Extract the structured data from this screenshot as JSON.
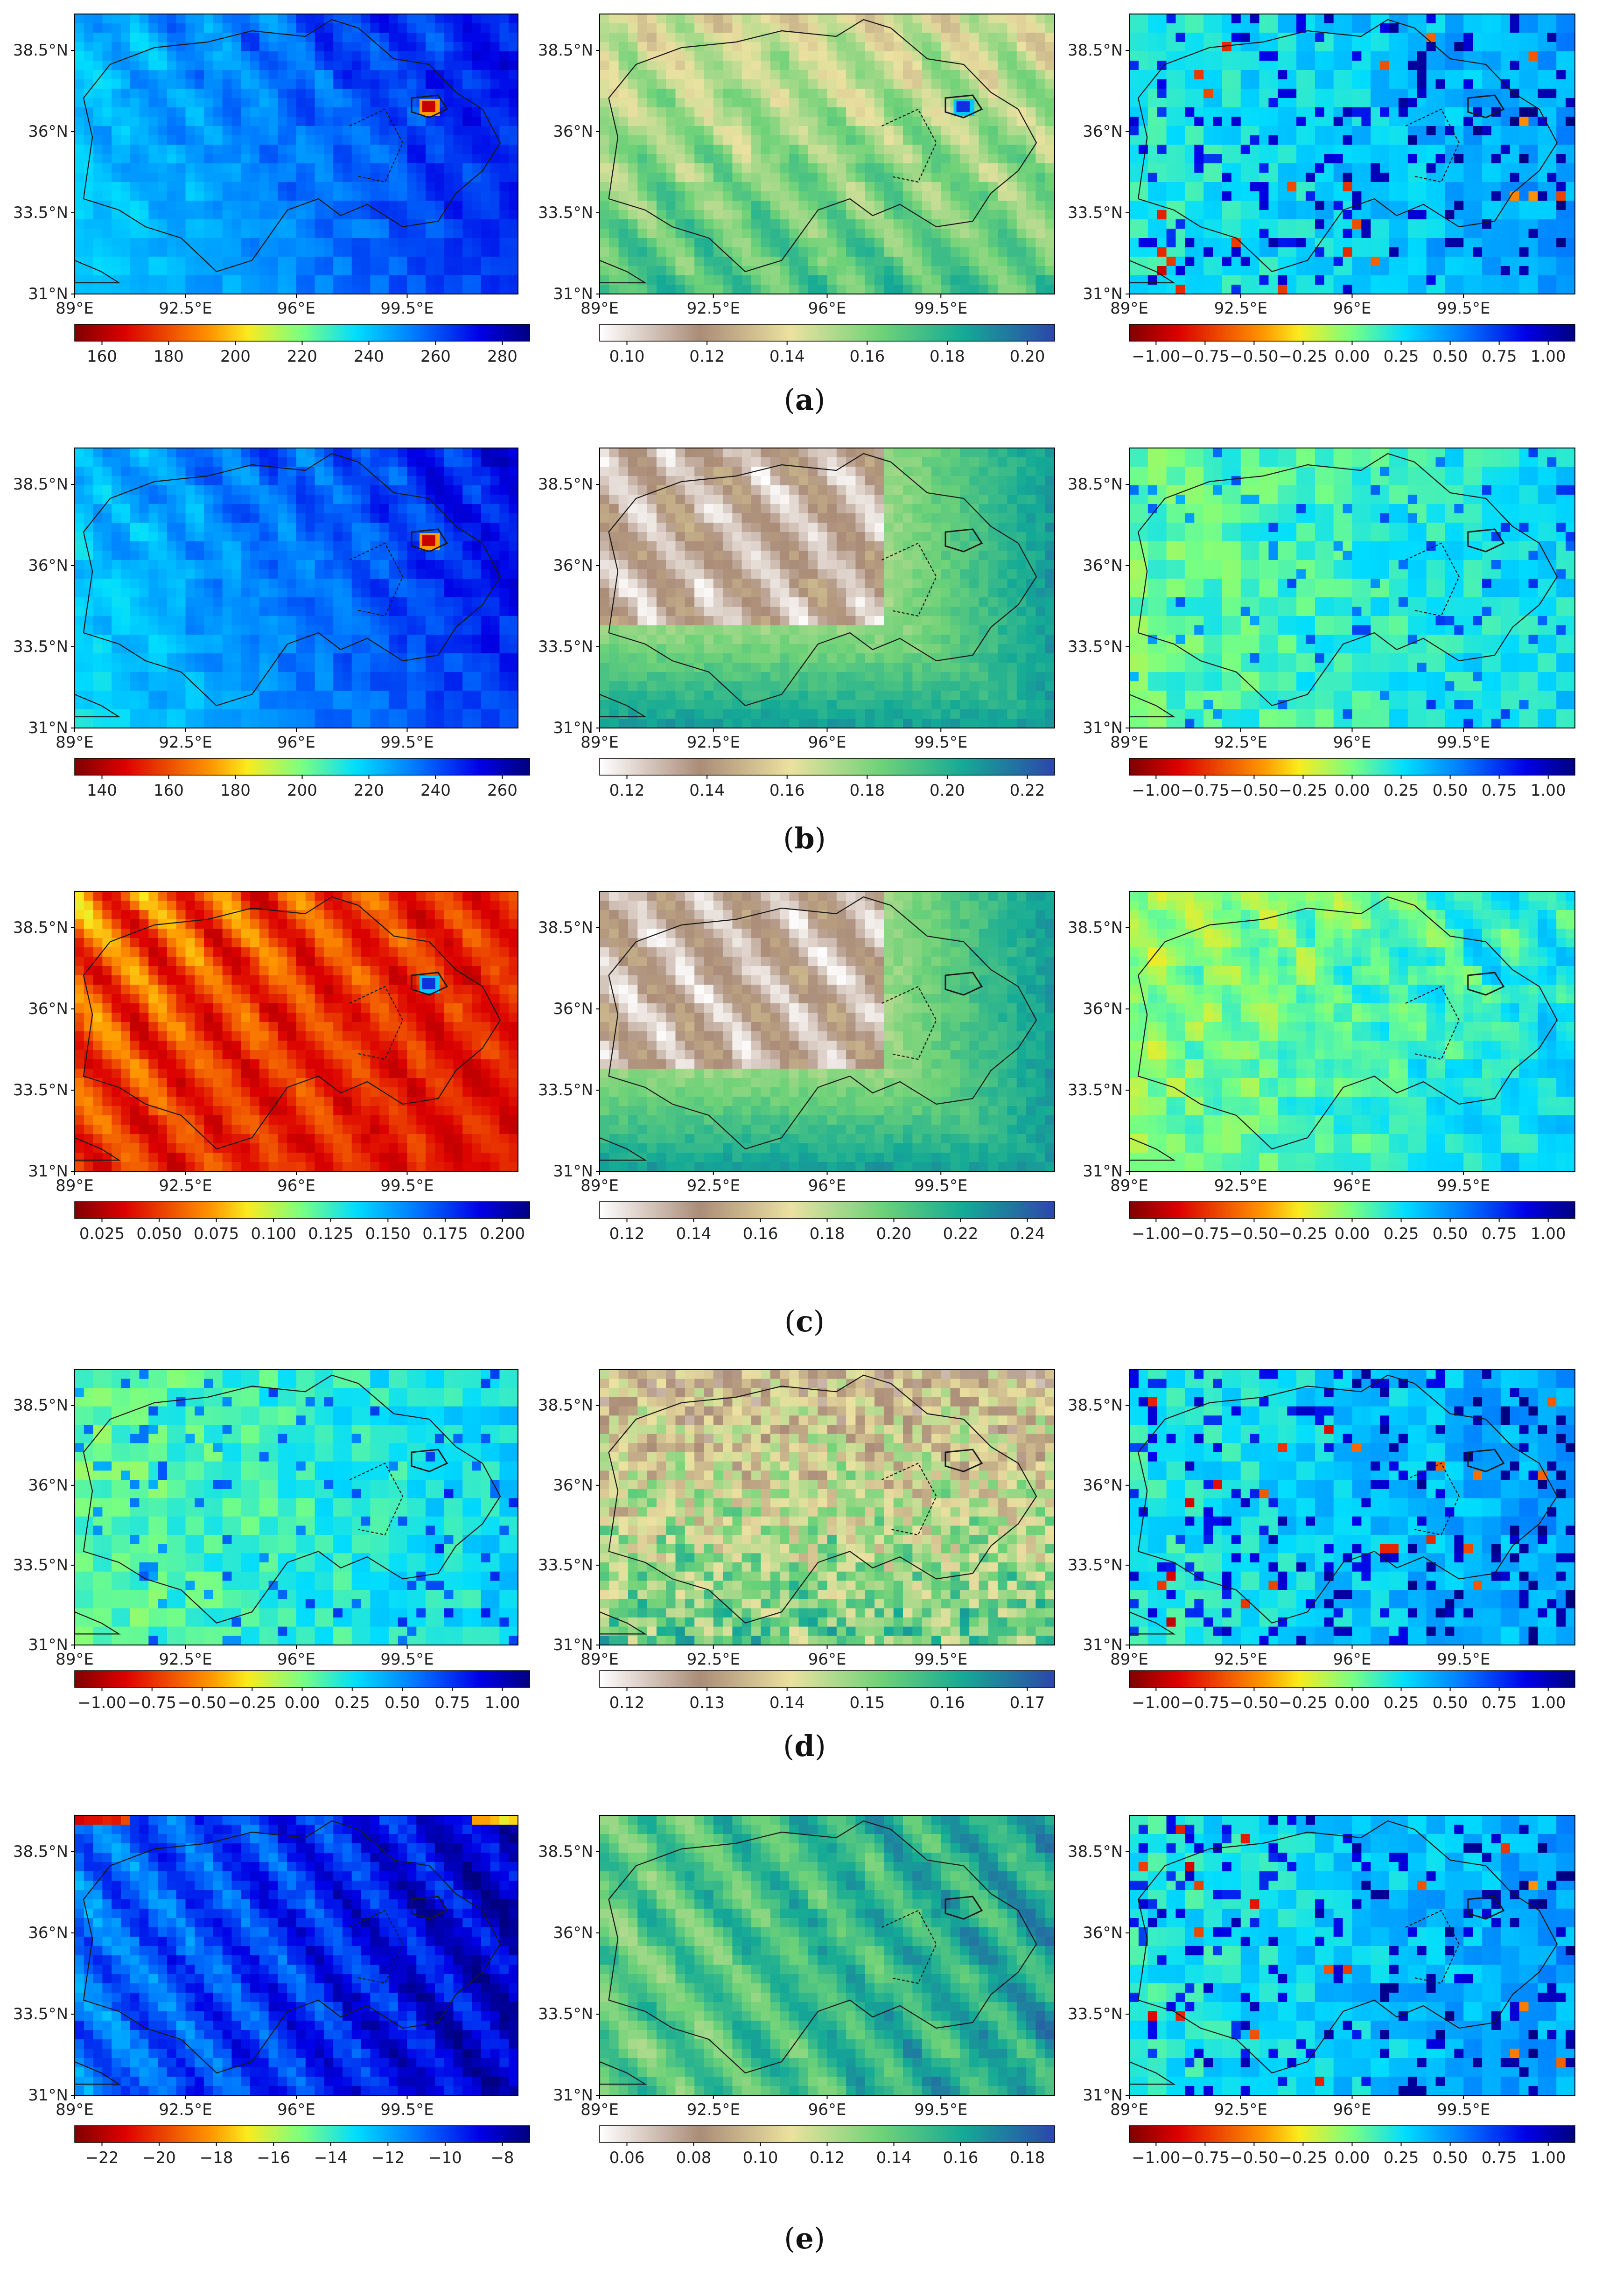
{
  "figure": {
    "rows": [
      {
        "label": "a",
        "panels": [
          {
            "field": "blues_high",
            "hotspot": "red",
            "colormap": "jet_r",
            "colorbar_ticks": [
              "160",
              "180",
              "200",
              "220",
              "240",
              "260",
              "280"
            ]
          },
          {
            "field": "terrain_mid",
            "hotspot": "blue",
            "colormap": "terrain_r",
            "colorbar_ticks": [
              "0.10",
              "0.12",
              "0.14",
              "0.16",
              "0.18",
              "0.20"
            ]
          },
          {
            "field": "patchy_blue",
            "hotspot": "none",
            "colormap": "jet_r",
            "colorbar_ticks": [
              "−1.00",
              "−0.75",
              "−0.50",
              "−0.25",
              "0.00",
              "0.25",
              "0.50",
              "0.75",
              "1.00"
            ]
          }
        ]
      },
      {
        "label": "b",
        "panels": [
          {
            "field": "blues_high",
            "hotspot": "red",
            "colormap": "jet_r",
            "colorbar_ticks": [
              "140",
              "160",
              "180",
              "200",
              "220",
              "240",
              "260"
            ]
          },
          {
            "field": "terrain_white",
            "hotspot": "none",
            "colormap": "terrain_r",
            "colorbar_ticks": [
              "0.12",
              "0.14",
              "0.16",
              "0.18",
              "0.20",
              "0.22"
            ]
          },
          {
            "field": "greenish",
            "hotspot": "none",
            "colormap": "jet_r",
            "colorbar_ticks": [
              "−1.00",
              "−0.75",
              "−0.50",
              "−0.25",
              "0.00",
              "0.25",
              "0.50",
              "0.75",
              "1.00"
            ]
          }
        ]
      },
      {
        "label": "c",
        "panels": [
          {
            "field": "reds_low",
            "hotspot": "blue",
            "colormap": "jet_r",
            "colorbar_ticks": [
              "0.025",
              "0.050",
              "0.075",
              "0.100",
              "0.125",
              "0.150",
              "0.175",
              "0.200"
            ]
          },
          {
            "field": "terrain_white",
            "hotspot": "none",
            "colormap": "terrain_r",
            "colorbar_ticks": [
              "0.12",
              "0.14",
              "0.16",
              "0.18",
              "0.20",
              "0.22",
              "0.24"
            ]
          },
          {
            "field": "yellowish",
            "hotspot": "none",
            "colormap": "jet_r",
            "colorbar_ticks": [
              "−1.00",
              "−0.75",
              "−0.50",
              "−0.25",
              "0.00",
              "0.25",
              "0.50",
              "0.75",
              "1.00"
            ]
          }
        ]
      },
      {
        "label": "d",
        "panels": [
          {
            "field": "greenish",
            "hotspot": "none",
            "colormap": "jet_r",
            "colorbar_ticks": [
              "−1.00",
              "−0.75",
              "−0.50",
              "−0.25",
              "0.00",
              "0.25",
              "0.50",
              "0.75",
              "1.00"
            ]
          },
          {
            "field": "terrain_noisy",
            "hotspot": "none",
            "colormap": "terrain_r",
            "colorbar_ticks": [
              "0.12",
              "0.13",
              "0.14",
              "0.15",
              "0.16",
              "0.17"
            ]
          },
          {
            "field": "patchy_blue",
            "hotspot": "none",
            "colormap": "jet_r",
            "colorbar_ticks": [
              "−1.00",
              "−0.75",
              "−0.50",
              "−0.25",
              "0.00",
              "0.25",
              "0.50",
              "0.75",
              "1.00"
            ]
          }
        ]
      },
      {
        "label": "e",
        "panels": [
          {
            "field": "blues_stripes",
            "hotspot": "none",
            "colormap": "jet_r",
            "colorbar_ticks": [
              "−22",
              "−20",
              "−18",
              "−16",
              "−14",
              "−12",
              "−10",
              "−8"
            ]
          },
          {
            "field": "terrain_green",
            "hotspot": "none",
            "colormap": "terrain_r",
            "colorbar_ticks": [
              "0.06",
              "0.08",
              "0.10",
              "0.12",
              "0.14",
              "0.16",
              "0.18"
            ]
          },
          {
            "field": "patchy_blue",
            "hotspot": "none",
            "colormap": "jet_r",
            "colorbar_ticks": [
              "−1.00",
              "−0.75",
              "−0.50",
              "−0.25",
              "0.00",
              "0.25",
              "0.50",
              "0.75",
              "1.00"
            ]
          }
        ]
      }
    ],
    "lat_ticks": [
      "38.5°N",
      "36°N",
      "33.5°N",
      "31°N"
    ],
    "lon_ticks": [
      "89°E",
      "92.5°E",
      "96°E",
      "99.5°E"
    ]
  },
  "colors": {
    "boundary": "#1a1a1a",
    "background": "#ffffff"
  }
}
